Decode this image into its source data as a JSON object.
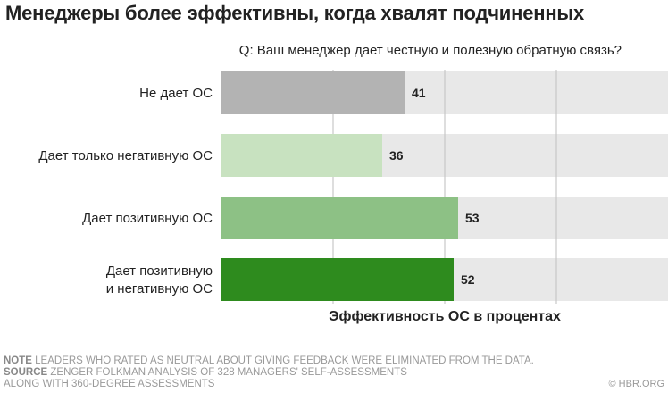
{
  "title": "Менеджеры более эффективны, когда хвалят подчиненных",
  "question": "Q: Ваш менеджер дает честную и полезную обратную связь?",
  "notes": {
    "note_key": "NOTE",
    "note_text": "LEADERS WHO RATED AS NEUTRAL ABOUT GIVING FEEDBACK WERE ELIMINATED FROM THE DATA.",
    "source_key": "SOURCE",
    "source_text_1": "ZENGER FOLKMAN ANALYSIS OF 328 MANAGERS' SELF-ASSESSMENTS",
    "source_text_2": "ALONG WITH 360-DEGREE ASSESSMENTS"
  },
  "credit": "© HBR.ORG",
  "chart_data": {
    "type": "bar",
    "orientation": "horizontal",
    "categories": [
      "Не дает ОС",
      "Дает только негативную ОС",
      "Дает позитивную ОС",
      "Дает позитивную\nи негативную ОС"
    ],
    "values": [
      41,
      36,
      53,
      52
    ],
    "xlabel": "Эффективность ОС в процентах",
    "xlim": [
      0,
      100
    ],
    "grid": true,
    "colors": [
      "#b3b3b3",
      "#c8e2c0",
      "#8dc185",
      "#2e8b1e"
    ],
    "background_bar_color": "#e8e8e8"
  }
}
